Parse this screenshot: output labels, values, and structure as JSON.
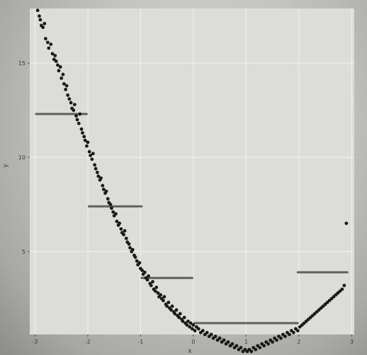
{
  "chart_data": {
    "type": "scatter",
    "title": "",
    "xlabel": "x",
    "ylabel": "y",
    "xlim": [
      -3.1,
      3.05
    ],
    "ylim": [
      0.6,
      17.9
    ],
    "xticks": [
      -3,
      -2,
      -1,
      0,
      1,
      2,
      3
    ],
    "yticks": [
      5,
      10,
      15
    ],
    "grid": true,
    "legend": "none",
    "colors": {
      "points": "#1a1a1a",
      "panel": "#dcdcd8",
      "grid": "#f2f2ee",
      "marker": "#4a4a4a"
    },
    "series": [
      {
        "values": [
          [
            -2.95,
            17.8
          ],
          [
            -2.92,
            17.5
          ],
          [
            -2.9,
            17.3
          ],
          [
            -2.88,
            17.0
          ],
          [
            -2.85,
            16.9
          ],
          [
            -2.82,
            17.1
          ],
          [
            -2.8,
            16.3
          ],
          [
            -2.76,
            16.1
          ],
          [
            -2.74,
            15.8
          ],
          [
            -2.7,
            16.0
          ],
          [
            -2.67,
            15.5
          ],
          [
            -2.64,
            15.2
          ],
          [
            -2.62,
            15.4
          ],
          [
            -2.6,
            15.1
          ],
          [
            -2.57,
            14.9
          ],
          [
            -2.55,
            14.6
          ],
          [
            -2.52,
            14.8
          ],
          [
            -2.5,
            14.2
          ],
          [
            -2.47,
            14.4
          ],
          [
            -2.45,
            13.9
          ],
          [
            -2.42,
            13.6
          ],
          [
            -2.4,
            13.8
          ],
          [
            -2.38,
            13.3
          ],
          [
            -2.35,
            13.1
          ],
          [
            -2.32,
            12.9
          ],
          [
            -2.3,
            12.6
          ],
          [
            -2.27,
            12.5
          ],
          [
            -2.25,
            12.8
          ],
          [
            -2.22,
            12.2
          ],
          [
            -2.2,
            12.0
          ],
          [
            -2.17,
            11.8
          ],
          [
            -2.15,
            12.3
          ],
          [
            -2.12,
            11.5
          ],
          [
            -2.1,
            11.3
          ],
          [
            -2.07,
            11.1
          ],
          [
            -2.05,
            10.9
          ],
          [
            -2.02,
            10.6
          ],
          [
            -2.0,
            10.8
          ],
          [
            -1.97,
            10.3
          ],
          [
            -1.95,
            10.1
          ],
          [
            -1.92,
            9.9
          ],
          [
            -1.9,
            10.2
          ],
          [
            -1.87,
            9.6
          ],
          [
            -1.85,
            9.4
          ],
          [
            -1.82,
            9.2
          ],
          [
            -1.8,
            9.0
          ],
          [
            -1.77,
            8.8
          ],
          [
            -1.75,
            8.9
          ],
          [
            -1.72,
            8.5
          ],
          [
            -1.7,
            8.3
          ],
          [
            -1.67,
            8.1
          ],
          [
            -1.65,
            8.2
          ],
          [
            -1.62,
            7.8
          ],
          [
            -1.6,
            7.6
          ],
          [
            -1.57,
            7.5
          ],
          [
            -1.55,
            7.3
          ],
          [
            -1.52,
            7.1
          ],
          [
            -1.5,
            6.9
          ],
          [
            -1.47,
            7.0
          ],
          [
            -1.45,
            6.6
          ],
          [
            -1.42,
            6.4
          ],
          [
            -1.4,
            6.5
          ],
          [
            -1.37,
            6.2
          ],
          [
            -1.35,
            6.0
          ],
          [
            -1.32,
            5.9
          ],
          [
            -1.3,
            6.1
          ],
          [
            -1.27,
            5.7
          ],
          [
            -1.25,
            5.5
          ],
          [
            -1.22,
            5.4
          ],
          [
            -1.2,
            5.2
          ],
          [
            -1.17,
            5.0
          ],
          [
            -1.15,
            5.1
          ],
          [
            -1.12,
            4.8
          ],
          [
            -1.1,
            4.7
          ],
          [
            -1.07,
            4.5
          ],
          [
            -1.05,
            4.3
          ],
          [
            -1.02,
            4.4
          ],
          [
            -1.0,
            4.1
          ],
          [
            -0.97,
            4.0
          ],
          [
            -0.95,
            3.8
          ],
          [
            -0.92,
            3.9
          ],
          [
            -0.9,
            3.6
          ],
          [
            -0.87,
            3.5
          ],
          [
            -0.85,
            3.7
          ],
          [
            -0.82,
            3.3
          ],
          [
            -0.8,
            3.2
          ],
          [
            -0.77,
            3.4
          ],
          [
            -0.75,
            3.0
          ],
          [
            -0.72,
            2.9
          ],
          [
            -0.7,
            3.1
          ],
          [
            -0.67,
            2.8
          ],
          [
            -0.65,
            2.6
          ],
          [
            -0.62,
            2.7
          ],
          [
            -0.6,
            2.5
          ],
          [
            -0.57,
            2.4
          ],
          [
            -0.55,
            2.6
          ],
          [
            -0.52,
            2.2
          ],
          [
            -0.5,
            2.1
          ],
          [
            -0.47,
            2.3
          ],
          [
            -0.45,
            2.0
          ],
          [
            -0.42,
            1.9
          ],
          [
            -0.4,
            2.1
          ],
          [
            -0.37,
            1.8
          ],
          [
            -0.35,
            1.7
          ],
          [
            -0.32,
            1.9
          ],
          [
            -0.3,
            1.6
          ],
          [
            -0.27,
            1.5
          ],
          [
            -0.25,
            1.7
          ],
          [
            -0.22,
            1.4
          ],
          [
            -0.2,
            1.3
          ],
          [
            -0.17,
            1.5
          ],
          [
            -0.15,
            1.2
          ],
          [
            -0.12,
            1.1
          ],
          [
            -0.1,
            1.3
          ],
          [
            -0.07,
            1.0
          ],
          [
            -0.05,
            1.2
          ],
          [
            -0.02,
            0.9
          ],
          [
            0.0,
            1.1
          ],
          [
            0.03,
            0.8
          ],
          [
            0.06,
            1.0
          ],
          [
            0.1,
            0.9
          ],
          [
            0.14,
            0.7
          ],
          [
            0.18,
            0.8
          ],
          [
            0.22,
            0.6
          ],
          [
            0.26,
            0.7
          ],
          [
            0.3,
            0.5
          ],
          [
            0.34,
            0.6
          ],
          [
            0.38,
            0.4
          ],
          [
            0.42,
            0.5
          ],
          [
            0.46,
            0.3
          ],
          [
            0.5,
            0.4
          ],
          [
            0.54,
            0.2
          ],
          [
            0.58,
            0.3
          ],
          [
            0.62,
            0.1
          ],
          [
            0.66,
            0.2
          ],
          [
            0.7,
            0.0
          ],
          [
            0.74,
            0.1
          ],
          [
            0.78,
            -0.1
          ],
          [
            0.82,
            0.0
          ],
          [
            0.86,
            -0.2
          ],
          [
            0.9,
            -0.1
          ],
          [
            0.94,
            -0.3
          ],
          [
            0.98,
            -0.2
          ],
          [
            1.02,
            -0.3
          ],
          [
            1.06,
            -0.2
          ],
          [
            1.1,
            -0.3
          ],
          [
            1.14,
            -0.1
          ],
          [
            1.18,
            -0.2
          ],
          [
            1.22,
            0.0
          ],
          [
            1.26,
            -0.1
          ],
          [
            1.3,
            0.1
          ],
          [
            1.34,
            0.0
          ],
          [
            1.38,
            0.2
          ],
          [
            1.42,
            0.1
          ],
          [
            1.46,
            0.3
          ],
          [
            1.5,
            0.2
          ],
          [
            1.54,
            0.4
          ],
          [
            1.58,
            0.3
          ],
          [
            1.62,
            0.5
          ],
          [
            1.66,
            0.4
          ],
          [
            1.7,
            0.6
          ],
          [
            1.74,
            0.5
          ],
          [
            1.78,
            0.7
          ],
          [
            1.82,
            0.6
          ],
          [
            1.86,
            0.8
          ],
          [
            1.9,
            0.7
          ],
          [
            1.94,
            0.9
          ],
          [
            1.98,
            0.8
          ],
          [
            2.02,
            1.0
          ],
          [
            2.06,
            1.1
          ],
          [
            2.1,
            1.2
          ],
          [
            2.14,
            1.3
          ],
          [
            2.18,
            1.4
          ],
          [
            2.22,
            1.5
          ],
          [
            2.26,
            1.6
          ],
          [
            2.3,
            1.7
          ],
          [
            2.34,
            1.8
          ],
          [
            2.38,
            1.9
          ],
          [
            2.42,
            2.0
          ],
          [
            2.46,
            2.1
          ],
          [
            2.5,
            2.2
          ],
          [
            2.54,
            2.3
          ],
          [
            2.58,
            2.4
          ],
          [
            2.62,
            2.5
          ],
          [
            2.66,
            2.6
          ],
          [
            2.7,
            2.7
          ],
          [
            2.74,
            2.8
          ],
          [
            2.78,
            2.9
          ],
          [
            2.82,
            3.0
          ],
          [
            2.86,
            3.2
          ],
          [
            2.9,
            6.5
          ]
        ]
      }
    ],
    "hand_markers": [
      {
        "x1": -2.98,
        "x2": -2.02,
        "y": 12.3
      },
      {
        "x1": -1.98,
        "x2": -0.98,
        "y": 7.4
      },
      {
        "x1": -0.98,
        "x2": -0.02,
        "y": 3.6
      },
      {
        "x1": 0.02,
        "x2": 1.98,
        "y": 1.2
      },
      {
        "x1": 1.98,
        "x2": 2.92,
        "y": 3.9
      }
    ]
  }
}
